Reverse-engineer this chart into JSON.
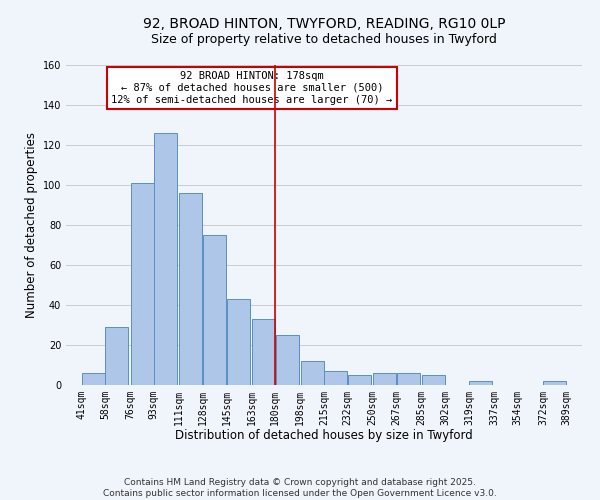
{
  "title": "92, BROAD HINTON, TWYFORD, READING, RG10 0LP",
  "subtitle": "Size of property relative to detached houses in Twyford",
  "xlabel": "Distribution of detached houses by size in Twyford",
  "ylabel": "Number of detached properties",
  "bar_left_edges": [
    41,
    58,
    76,
    93,
    111,
    128,
    145,
    163,
    180,
    198,
    215,
    232,
    250,
    267,
    285,
    302,
    319,
    337,
    354,
    372
  ],
  "bar_heights": [
    6,
    29,
    101,
    126,
    96,
    75,
    43,
    33,
    25,
    12,
    7,
    5,
    6,
    6,
    5,
    0,
    2,
    0,
    0,
    2
  ],
  "bin_width": 17,
  "tick_labels": [
    "41sqm",
    "58sqm",
    "76sqm",
    "93sqm",
    "111sqm",
    "128sqm",
    "145sqm",
    "163sqm",
    "180sqm",
    "198sqm",
    "215sqm",
    "232sqm",
    "250sqm",
    "267sqm",
    "285sqm",
    "302sqm",
    "319sqm",
    "337sqm",
    "354sqm",
    "372sqm",
    "389sqm"
  ],
  "tick_positions": [
    41,
    58,
    76,
    93,
    111,
    128,
    145,
    163,
    180,
    198,
    215,
    232,
    250,
    267,
    285,
    302,
    319,
    337,
    354,
    372,
    389
  ],
  "ylim": [
    0,
    160
  ],
  "xlim": [
    30,
    400
  ],
  "bar_color": "#aec6e8",
  "bar_edge_color": "#5a8fc2",
  "vline_x": 180,
  "vline_color": "#cc0000",
  "annotation_title": "92 BROAD HINTON: 178sqm",
  "annotation_line1": "← 87% of detached houses are smaller (500)",
  "annotation_line2": "12% of semi-detached houses are larger (70) →",
  "annotation_box_color": "#ffffff",
  "annotation_box_edge": "#cc0000",
  "grid_color": "#cccccc",
  "background_color": "#f0f4fb",
  "footer_line1": "Contains HM Land Registry data © Crown copyright and database right 2025.",
  "footer_line2": "Contains public sector information licensed under the Open Government Licence v3.0.",
  "title_fontsize": 10,
  "subtitle_fontsize": 9,
  "axis_label_fontsize": 8.5,
  "tick_fontsize": 7,
  "annotation_fontsize": 7.5,
  "footer_fontsize": 6.5
}
